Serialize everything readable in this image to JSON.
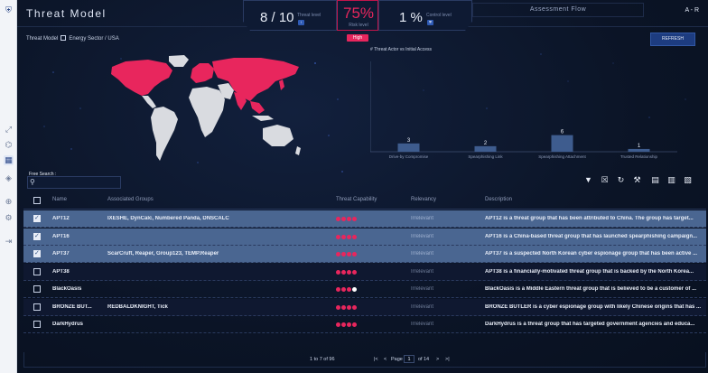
{
  "app": {
    "title": "Threat Model",
    "user_initials": "A - R"
  },
  "kpis": {
    "threat_level_value": "8 / 10",
    "threat_level_label": "Threat level",
    "risk_level_value": "75%",
    "risk_level_label": "Risk level",
    "risk_badge": "High",
    "control_level_value": "1 %",
    "control_level_label": "Control level"
  },
  "tabs": {
    "assessment_flow": "Assessment Flow"
  },
  "breadcrumb": {
    "item1": "Threat Model",
    "item2": "Energy Sector / USA"
  },
  "buttons": {
    "refresh": "REFRESH"
  },
  "search": {
    "label": "Free Search :",
    "placeholder": ""
  },
  "colors": {
    "accent": "#e8265d",
    "primary": "#1d3c80",
    "map_highlight": "#e8265d",
    "map_land": "#d9dbe0",
    "bar": "#3e5c8e"
  },
  "chart_data": {
    "type": "bar",
    "title": "# Threat Actor vs Initial Access",
    "categories": [
      "Drive-by Compromise",
      "Spearphishing Link",
      "Spearphishing Attachment",
      "Trusted Relationship"
    ],
    "values": [
      3,
      2,
      6,
      1
    ],
    "ylim": [
      0,
      6
    ],
    "grid": false,
    "legend": "none"
  },
  "table": {
    "headers": [
      "Name",
      "Associated Groups",
      "Threat Capability",
      "Relevancy",
      "Description"
    ],
    "rows": [
      {
        "name": "APT12",
        "groups": "IXESHE, DynCalc, Numbered Panda, DNSCALC",
        "filled": 4,
        "relevancy": "Irrelevant",
        "description": "APT12 is a threat group that has been attributed to China. The group has target...",
        "selected": true
      },
      {
        "name": "APT16",
        "groups": "",
        "filled": 4,
        "relevancy": "Irrelevant",
        "description": "APT16 is a China-based threat group that has launched spearphishing campaign...",
        "selected": true
      },
      {
        "name": "APT37",
        "groups": "ScarCruft, Reaper, Group123, TEMP.Reaper",
        "filled": 4,
        "relevancy": "Irrelevant",
        "description": "APT37 is a suspected North Korean cyber espionage group that has been active ...",
        "selected": true
      },
      {
        "name": "APT38",
        "groups": "",
        "filled": 4,
        "relevancy": "Irrelevant",
        "description": "APT38 is a financially-motivated threat group that is backed by the North Korea...",
        "selected": false
      },
      {
        "name": "BlackOasis",
        "groups": "",
        "filled": 3,
        "relevancy": "Irrelevant",
        "description": "BlackOasis is a Middle Eastern threat group that is believed to be a customer of ...",
        "selected": false
      },
      {
        "name": "BRONZE BUT...",
        "groups": "REDBALDKNIGHT, Tick",
        "filled": 4,
        "relevancy": "Irrelevant",
        "description": "BRONZE BUTLER is a cyber espionage group with likely Chinese origins that has ...",
        "selected": false
      },
      {
        "name": "DarkHydrus",
        "groups": "",
        "filled": 4,
        "relevancy": "Irrelevant",
        "description": "DarkHydrus is a threat group that has targeted government agencies and educa...",
        "selected": false
      }
    ]
  },
  "pager": {
    "range": "1 to 7 of 96",
    "page_label": "Page",
    "current_page": "1",
    "of_label": "of",
    "total_pages": "14"
  }
}
